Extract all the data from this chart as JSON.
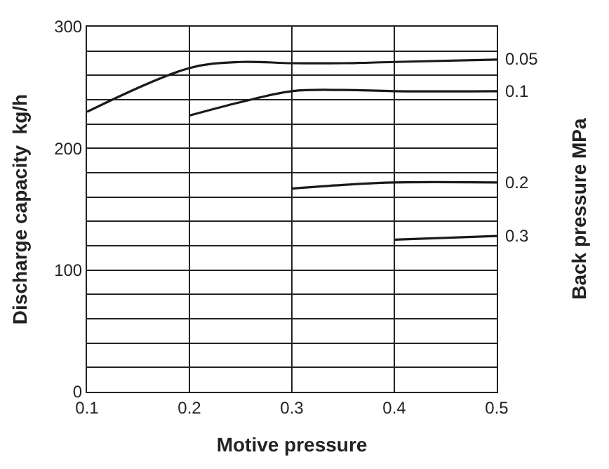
{
  "chart_data": {
    "type": "line",
    "xlabel": "Motive pressure",
    "ylabel": "Discharge capacity  kg/h",
    "y2label": "Back pressure MPa",
    "xlim": [
      0.1,
      0.5
    ],
    "xticks": [
      0.1,
      0.2,
      0.3,
      0.4,
      0.5
    ],
    "ylim": [
      0,
      300
    ],
    "yticks": [
      0,
      {
        "value": 20,
        "label": null
      },
      {
        "value": 40,
        "label": null
      },
      {
        "value": 60,
        "label": null
      },
      {
        "value": 80,
        "label": null
      },
      100,
      {
        "value": 120,
        "label": null
      },
      {
        "value": 140,
        "label": null
      },
      {
        "value": 160,
        "label": null
      },
      {
        "value": 180,
        "label": null
      },
      200,
      {
        "value": 220,
        "label": null
      },
      {
        "value": 240,
        "label": null
      },
      {
        "value": 260,
        "label": null
      },
      {
        "value": 280,
        "label": null
      },
      300
    ],
    "grid": true,
    "legend": false,
    "marker": "none",
    "line_style": "solid",
    "series": [
      {
        "name": "0.05",
        "color": "#1a1a1a",
        "x": [
          0.1,
          0.2,
          0.25,
          0.3,
          0.35,
          0.4,
          0.5
        ],
        "values": [
          230,
          266,
          271,
          270,
          270,
          271,
          273
        ]
      },
      {
        "name": "0.1",
        "color": "#1a1a1a",
        "x": [
          0.2,
          0.25,
          0.3,
          0.35,
          0.4,
          0.5
        ],
        "values": [
          227,
          238,
          247,
          248,
          247,
          247
        ]
      },
      {
        "name": "0.2",
        "color": "#1a1a1a",
        "x": [
          0.3,
          0.35,
          0.4,
          0.5
        ],
        "values": [
          167,
          170,
          172,
          172
        ]
      },
      {
        "name": "0.3",
        "color": "#1a1a1a",
        "x": [
          0.4,
          0.5
        ],
        "values": [
          125,
          128
        ]
      }
    ]
  }
}
